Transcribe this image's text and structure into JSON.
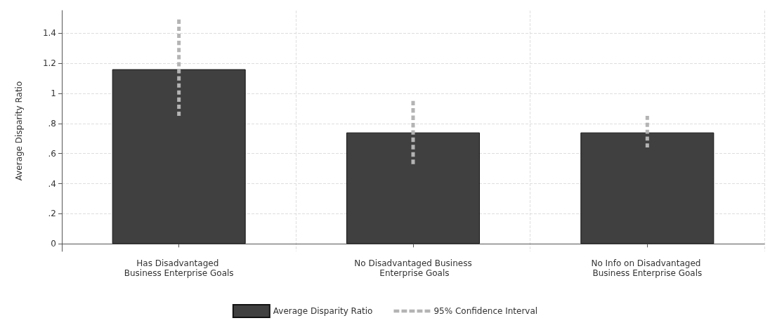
{
  "chart_data": {
    "type": "bar",
    "categories": [
      "Has Disadvantaged Business Enterprise Goals",
      "No Disadvantaged Business Enterprise Goals",
      "No Info on Disadvantaged Business Enterprise Goals"
    ],
    "series": [
      {
        "name": "Average Disparity Ratio",
        "color": "#404040",
        "values": [
          1.16,
          0.74,
          0.74
        ],
        "errors": [
          [
            0.85,
            1.49
          ],
          [
            0.53,
            0.95
          ],
          [
            0.64,
            0.85
          ]
        ]
      }
    ],
    "ylabel": "Average Disparity Ratio",
    "ylim": [
      -0.05,
      1.55
    ],
    "yticks": [
      0,
      {
        "value": 0.2,
        "label": ".2"
      },
      {
        "value": 0.4,
        "label": ".4"
      },
      {
        "value": 0.6,
        "label": ".6"
      },
      {
        "value": 0.8,
        "label": ".8"
      },
      1,
      1.2,
      1.4
    ],
    "annotations": [
      "95% Confidence Interval"
    ],
    "grid": true,
    "legend": "bottom"
  }
}
